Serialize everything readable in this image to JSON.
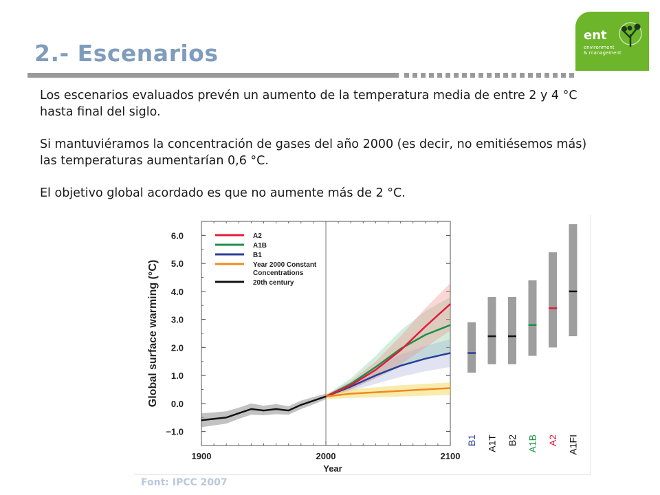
{
  "slide": {
    "title": "2.- Escenarios",
    "paragraphs": [
      "Los escenarios evaluados prevén un aumento de la temperatura media de entre 2 y 4 °C hasta final del siglo.",
      "Si mantuviéramos la concentración de gases del año 2000 (es decir, no emitiésemos más) las temperaturas aumentarían 0,6 °C.",
      "El objetivo global acordado es que no aumente más de 2 °C."
    ],
    "source": "Font: IPCC 2007",
    "logo": {
      "name": "ent",
      "sub1": "environment",
      "sub2": "& management",
      "color": "#6db52a"
    },
    "title_color": "#7f9cbc"
  },
  "chart_data": [
    {
      "type": "line",
      "xlabel": "Year",
      "ylabel": "Global surface warming (°C)",
      "xlim": [
        1900,
        2100
      ],
      "ylim": [
        -1.5,
        6.5
      ],
      "xticks": [
        "1900",
        "2000",
        "2100"
      ],
      "yticks": [
        "−1.0",
        "0.0",
        "1.0",
        "2.0",
        "3.0",
        "4.0",
        "5.0",
        "6.0"
      ],
      "legend_position": "top-left",
      "series": [
        {
          "name": "A2",
          "color": "#e21c3a",
          "x": [
            2000,
            2020,
            2040,
            2060,
            2080,
            2100
          ],
          "y": [
            0.25,
            0.65,
            1.2,
            1.9,
            2.75,
            3.55
          ],
          "lower": [
            0.2,
            0.5,
            0.9,
            1.4,
            2.0,
            2.6
          ],
          "upper": [
            0.3,
            0.8,
            1.5,
            2.4,
            3.4,
            4.3
          ]
        },
        {
          "name": "A1B",
          "color": "#1a9048",
          "x": [
            2000,
            2020,
            2040,
            2060,
            2080,
            2100
          ],
          "y": [
            0.25,
            0.7,
            1.3,
            1.95,
            2.45,
            2.8
          ],
          "lower": [
            0.2,
            0.5,
            0.9,
            1.3,
            1.6,
            1.8
          ],
          "upper": [
            0.3,
            0.9,
            1.7,
            2.6,
            3.3,
            3.8
          ]
        },
        {
          "name": "B1",
          "color": "#283f96",
          "x": [
            2000,
            2020,
            2040,
            2060,
            2080,
            2100
          ],
          "y": [
            0.25,
            0.6,
            1.0,
            1.35,
            1.6,
            1.8
          ],
          "lower": [
            0.2,
            0.45,
            0.7,
            0.95,
            1.15,
            1.3
          ],
          "upper": [
            0.3,
            0.75,
            1.3,
            1.75,
            2.05,
            2.3
          ]
        },
        {
          "name": "Year 2000 Constant",
          "name2": "Concentrations",
          "color": "#f08a1c",
          "x": [
            2000,
            2020,
            2040,
            2060,
            2080,
            2100
          ],
          "y": [
            0.25,
            0.35,
            0.4,
            0.45,
            0.5,
            0.55
          ],
          "lower": [
            0.15,
            0.2,
            0.22,
            0.25,
            0.28,
            0.3
          ],
          "upper": [
            0.35,
            0.5,
            0.58,
            0.65,
            0.7,
            0.75
          ]
        },
        {
          "name": "20th century",
          "color": "#111111",
          "x": [
            1900,
            1910,
            1920,
            1930,
            1940,
            1950,
            1960,
            1970,
            1980,
            1990,
            2000
          ],
          "y": [
            -0.6,
            -0.55,
            -0.5,
            -0.35,
            -0.2,
            -0.25,
            -0.2,
            -0.25,
            -0.05,
            0.1,
            0.25
          ],
          "lower": [
            -0.85,
            -0.78,
            -0.72,
            -0.55,
            -0.4,
            -0.42,
            -0.38,
            -0.4,
            -0.2,
            -0.03,
            0.15
          ],
          "upper": [
            -0.35,
            -0.32,
            -0.28,
            -0.15,
            0.0,
            -0.08,
            -0.02,
            -0.1,
            0.1,
            0.23,
            0.35
          ]
        }
      ]
    },
    {
      "type": "range-bar",
      "categories": [
        "B1",
        "A1T",
        "B2",
        "A1B",
        "A2",
        "A1FI"
      ],
      "category_colors": [
        "#283f96",
        "#111111",
        "#111111",
        "#1a9048",
        "#e21c3a",
        "#111111"
      ],
      "ranges": [
        [
          1.1,
          2.9
        ],
        [
          1.4,
          3.8
        ],
        [
          1.4,
          3.8
        ],
        [
          1.7,
          4.4
        ],
        [
          2.0,
          5.4
        ],
        [
          2.4,
          6.4
        ]
      ],
      "best_estimates": [
        1.8,
        2.4,
        2.4,
        2.8,
        3.4,
        4.0
      ]
    }
  ]
}
